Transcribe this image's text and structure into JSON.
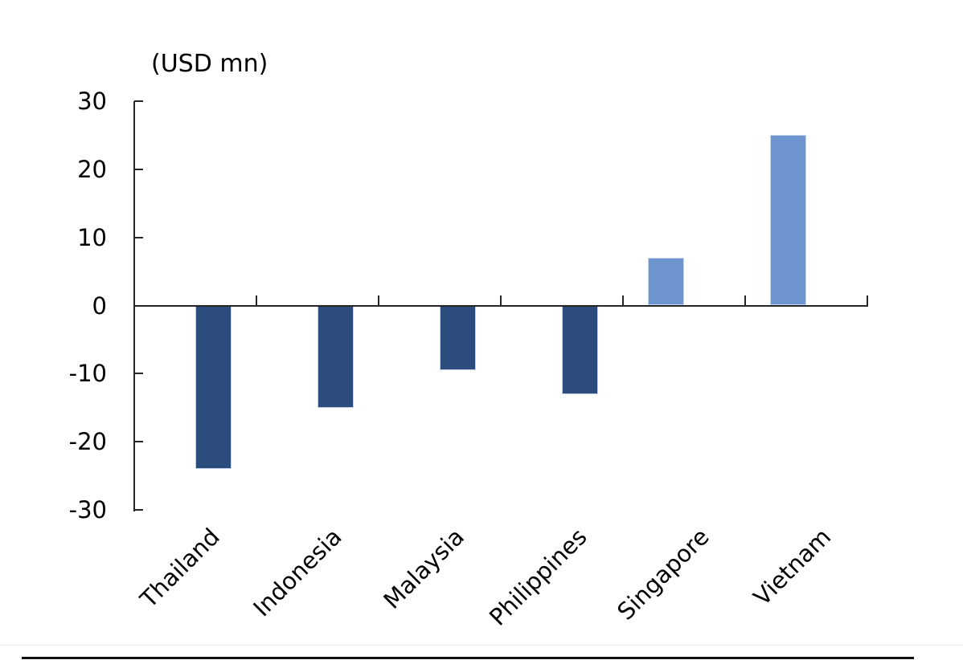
{
  "chart_data": {
    "type": "bar",
    "title": "(USD mn)",
    "categories": [
      "Thailand",
      "Indonesia",
      "Malaysia",
      "Philippines",
      "Singapore",
      "Vietnam"
    ],
    "series": [
      {
        "name": "light-blue-series",
        "cluster_side": "left",
        "color": "#6E94D0",
        "border_color": "#C9D7EC",
        "values": [
          null,
          null,
          null,
          null,
          7,
          25
        ]
      },
      {
        "name": "dark-blue-series",
        "cluster_side": "right",
        "color": "#2B4C7D",
        "border_color": "#C2CFE4",
        "values": [
          -24,
          -15,
          -9.5,
          -13,
          null,
          null
        ]
      }
    ],
    "ylim": [
      -30,
      30
    ],
    "yticks": [
      30,
      20,
      10,
      0,
      -10,
      -20,
      -30
    ],
    "xlabel": "",
    "ylabel": "",
    "grid": false,
    "legend_position": "none",
    "axis_color": "#262626",
    "text_color": "#000000"
  }
}
